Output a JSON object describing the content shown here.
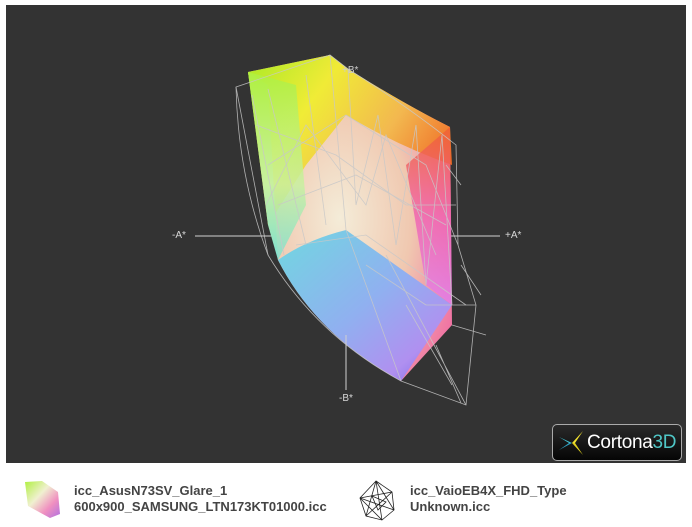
{
  "chart_data": {
    "type": "3d-gamut",
    "axes": {
      "pos_a": "+A*",
      "neg_a": "-A*",
      "pos_b": "+B*",
      "neg_b": "-B*"
    },
    "series": [
      {
        "name": "icc_AsusN73SV_Glare_1 600x900_SAMSUNG_LTN173KT01000.icc",
        "style": "solid-color-volume"
      },
      {
        "name": "icc_VaioEB4X_FHD_Type Unknown.icc",
        "style": "wireframe"
      }
    ]
  },
  "viewer": {
    "logo_text": "Cortona",
    "logo_suffix": "3D"
  },
  "legend": [
    {
      "line1": "icc_AsusN73SV_Glare_1",
      "line2": "600x900_SAMSUNG_LTN173KT01000.icc",
      "icon": "color-gamut-icon"
    },
    {
      "line1": "icc_VaioEB4X_FHD_Type",
      "line2": "Unknown.icc",
      "icon": "wireframe-gamut-icon"
    }
  ],
  "colors": {
    "background": "#333333",
    "wireframe": "#c8c8c8"
  }
}
